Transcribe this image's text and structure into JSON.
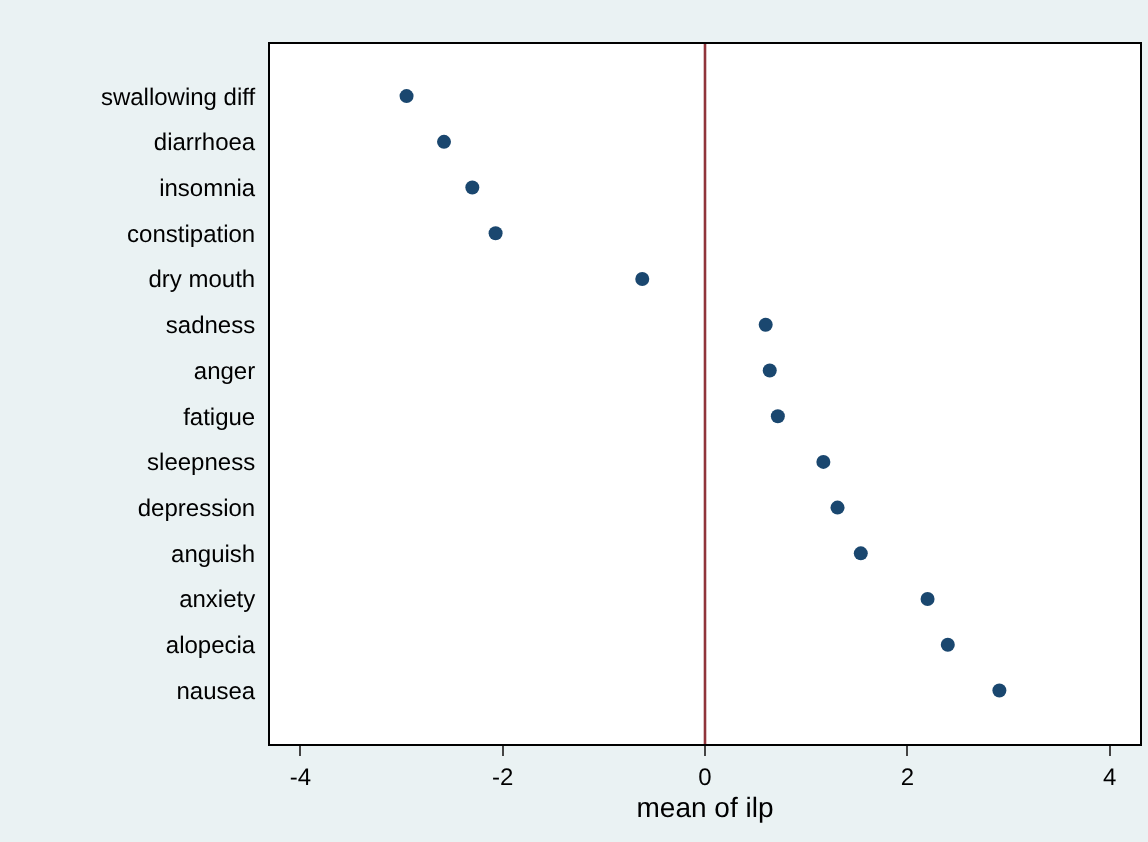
{
  "chart_data": {
    "type": "scatter",
    "xlabel": "mean of ilp",
    "categories": [
      "swallowing diff",
      "diarrhoea",
      "insomnia",
      "constipation",
      "dry mouth",
      "sadness",
      "anger",
      "fatigue",
      "sleepness",
      "depression",
      "anguish",
      "anxiety",
      "alopecia",
      "nausea"
    ],
    "orientation": "horizontal",
    "series": [
      {
        "color": "#1a476f",
        "values": [
          -2.95,
          -2.58,
          -2.3,
          -2.07,
          -0.62,
          0.6,
          0.64,
          0.72,
          1.17,
          1.31,
          1.54,
          2.2,
          2.4,
          2.91
        ]
      }
    ],
    "xlim": [
      -4.3,
      4.3
    ],
    "xticks": [
      -4,
      -2,
      0,
      2,
      4
    ],
    "ref_lines": [
      {
        "axis": "x",
        "value": 0,
        "color": "#90353b"
      }
    ],
    "legend": false,
    "marker": "circle"
  }
}
